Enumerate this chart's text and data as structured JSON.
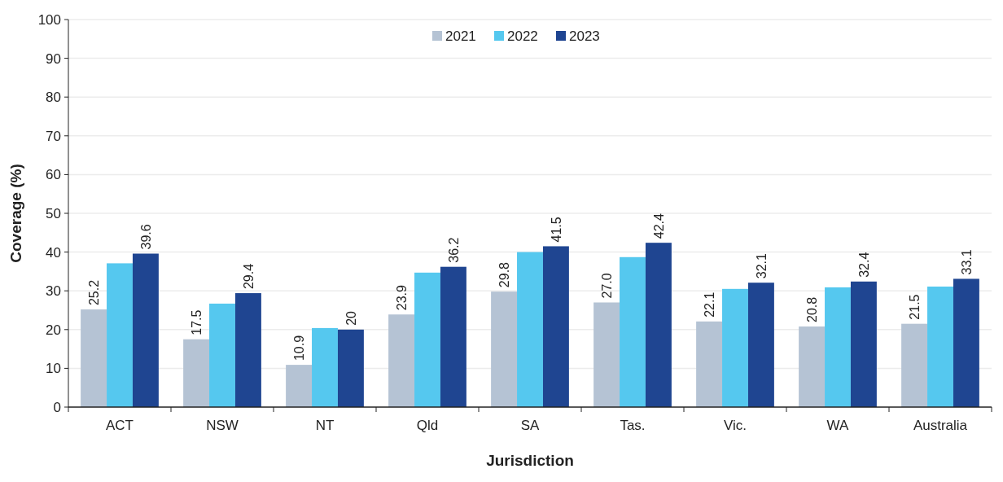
{
  "chart_data": {
    "type": "bar",
    "xlabel": "Jurisdiction",
    "ylabel": "Coverage (%)",
    "categories": [
      "ACT",
      "NSW",
      "NT",
      "Qld",
      "SA",
      "Tas.",
      "Vic.",
      "WA",
      "Australia"
    ],
    "series": [
      {
        "name": "2021",
        "color": "#b5c3d4",
        "values": [
          25.2,
          17.5,
          10.9,
          23.9,
          29.8,
          27.0,
          22.1,
          20.8,
          21.5
        ],
        "value_labels": [
          "25.2",
          "17.5",
          "10.9",
          "23.9",
          "29.8",
          "27.0",
          "22.1",
          "20.8",
          "21.5"
        ]
      },
      {
        "name": "2022",
        "color": "#55c8ef",
        "values": [
          37.1,
          26.7,
          20.4,
          34.7,
          40.0,
          38.7,
          30.5,
          30.9,
          31.1
        ]
      },
      {
        "name": "2023",
        "color": "#1f4591",
        "values": [
          39.6,
          29.4,
          20,
          36.2,
          41.5,
          42.4,
          32.1,
          32.4,
          33.1
        ],
        "value_labels": [
          "39.6",
          "29.4",
          "20",
          "36.2",
          "41.5",
          "42.4",
          "32.1",
          "32.4",
          "33.1"
        ]
      }
    ],
    "ylim": [
      0,
      100
    ],
    "yticks": [
      0,
      10,
      20,
      30,
      40,
      50,
      60,
      70,
      80,
      90,
      100
    ],
    "grid": "y",
    "legend": "top"
  }
}
